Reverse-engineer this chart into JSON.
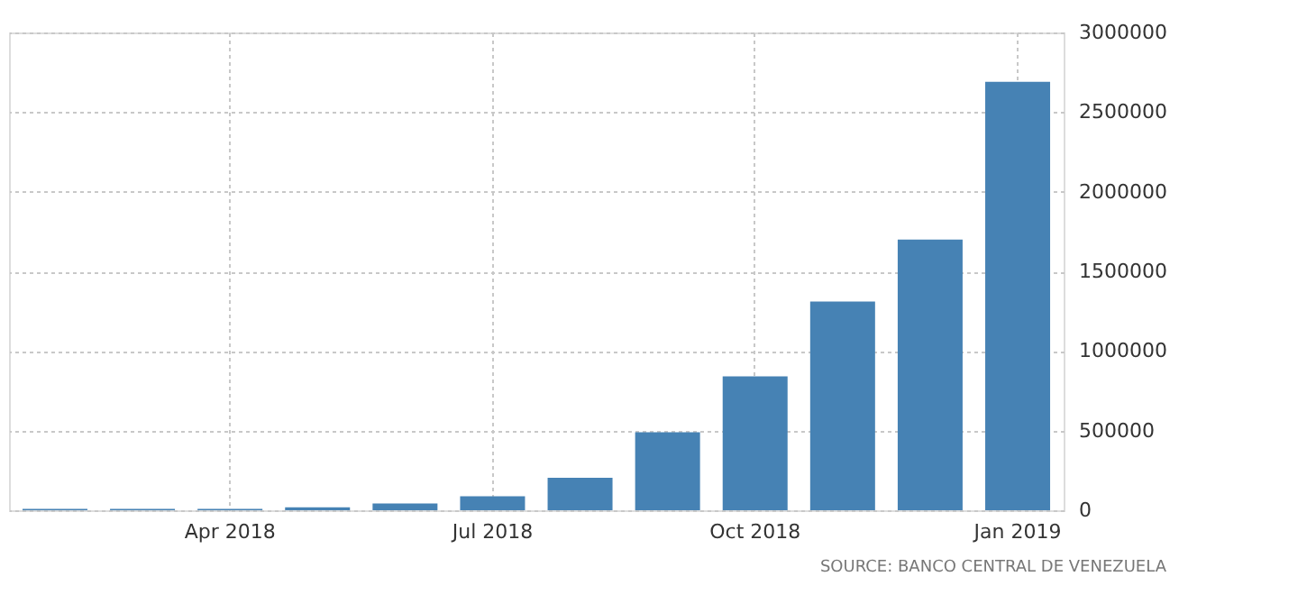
{
  "chart_data": {
    "type": "bar",
    "categories": [
      null,
      null,
      "Apr 2018",
      null,
      null,
      "Jul 2018",
      null,
      null,
      "Oct 2018",
      null,
      null,
      "Jan 2019"
    ],
    "values": [
      8000,
      8000,
      8000,
      19000,
      42000,
      88000,
      204000,
      490000,
      840000,
      1310000,
      1700000,
      2690000
    ],
    "color": "#4682b4",
    "ylim": [
      0,
      3000000
    ],
    "yticks": [
      0,
      500000,
      1000000,
      1500000,
      2000000,
      2500000,
      3000000
    ],
    "grid": true,
    "annotations": [
      "SOURCE: BANCO CENTRAL DE VENEZUELA"
    ]
  }
}
